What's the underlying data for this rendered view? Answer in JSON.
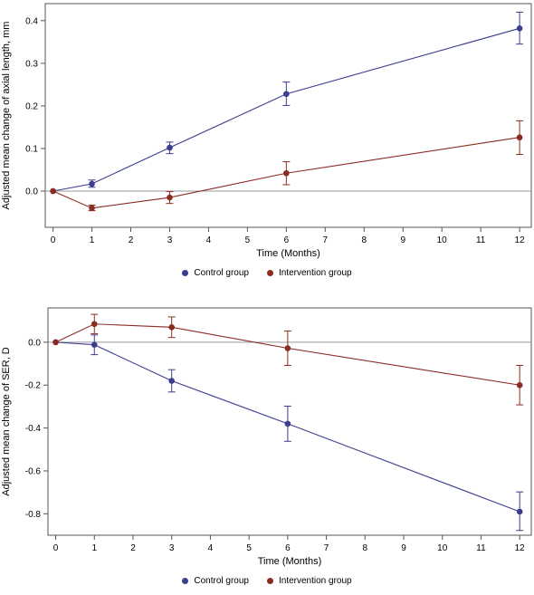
{
  "chart_data": [
    {
      "type": "line",
      "xlabel": "Time (Months)",
      "ylabel": "Adjusted mean change of axial length, mm",
      "xlim": [
        -0.2,
        12.3
      ],
      "ylim": [
        -0.085,
        0.44
      ],
      "x_ticks": [
        0,
        1,
        2,
        3,
        4,
        5,
        6,
        7,
        8,
        9,
        10,
        11,
        12
      ],
      "y_ticks": [
        0.0,
        0.1,
        0.2,
        0.3,
        0.4
      ],
      "y_tick_labels": [
        "0.0",
        "0.1",
        "0.2",
        "0.3",
        "0.4"
      ],
      "reference_line": 0,
      "legend_placement": "bottom",
      "series": [
        {
          "name": "Control group",
          "color": "#3b3d8f",
          "x": [
            0,
            1,
            3,
            6,
            12
          ],
          "values": [
            0.0,
            0.017,
            0.102,
            0.228,
            0.382
          ],
          "err_low": [
            0.0,
            0.009,
            0.088,
            0.201,
            0.345
          ],
          "err_high": [
            0.0,
            0.026,
            0.115,
            0.256,
            0.42
          ]
        },
        {
          "name": "Intervention group",
          "color": "#8b2c22",
          "x": [
            0,
            1,
            3,
            6,
            12
          ],
          "values": [
            0.0,
            -0.04,
            -0.015,
            0.042,
            0.126
          ],
          "err_low": [
            0.0,
            -0.046,
            -0.029,
            0.015,
            0.086
          ],
          "err_high": [
            0.0,
            -0.033,
            -0.001,
            0.069,
            0.165
          ]
        }
      ]
    },
    {
      "type": "line",
      "xlabel": "Time (Months)",
      "ylabel": "Adjusted mean change of SER, D",
      "xlim": [
        -0.2,
        12.3
      ],
      "ylim": [
        -0.9,
        0.16
      ],
      "x_ticks": [
        0,
        1,
        2,
        3,
        4,
        5,
        6,
        7,
        8,
        9,
        10,
        11,
        12
      ],
      "y_ticks": [
        0.0,
        -0.2,
        -0.4,
        -0.6,
        -0.8
      ],
      "y_tick_labels": [
        "0.0",
        "-0.2",
        "-0.4",
        "-0.6",
        "-0.8"
      ],
      "reference_line": 0,
      "legend_placement": "bottom",
      "series": [
        {
          "name": "Control group",
          "color": "#3b3d8f",
          "x": [
            0,
            1,
            3,
            6,
            12
          ],
          "values": [
            0.0,
            -0.012,
            -0.18,
            -0.38,
            -0.79
          ],
          "err_low": [
            0.0,
            -0.058,
            -0.232,
            -0.462,
            -0.878
          ],
          "err_high": [
            0.0,
            0.034,
            -0.128,
            -0.298,
            -0.698
          ]
        },
        {
          "name": "Intervention group",
          "color": "#8b2c22",
          "x": [
            0,
            1,
            3,
            6,
            12
          ],
          "values": [
            0.0,
            0.085,
            0.07,
            -0.028,
            -0.2
          ],
          "err_low": [
            0.0,
            0.04,
            0.022,
            -0.108,
            -0.292
          ],
          "err_high": [
            0.0,
            0.13,
            0.118,
            0.052,
            -0.108
          ]
        }
      ]
    }
  ]
}
